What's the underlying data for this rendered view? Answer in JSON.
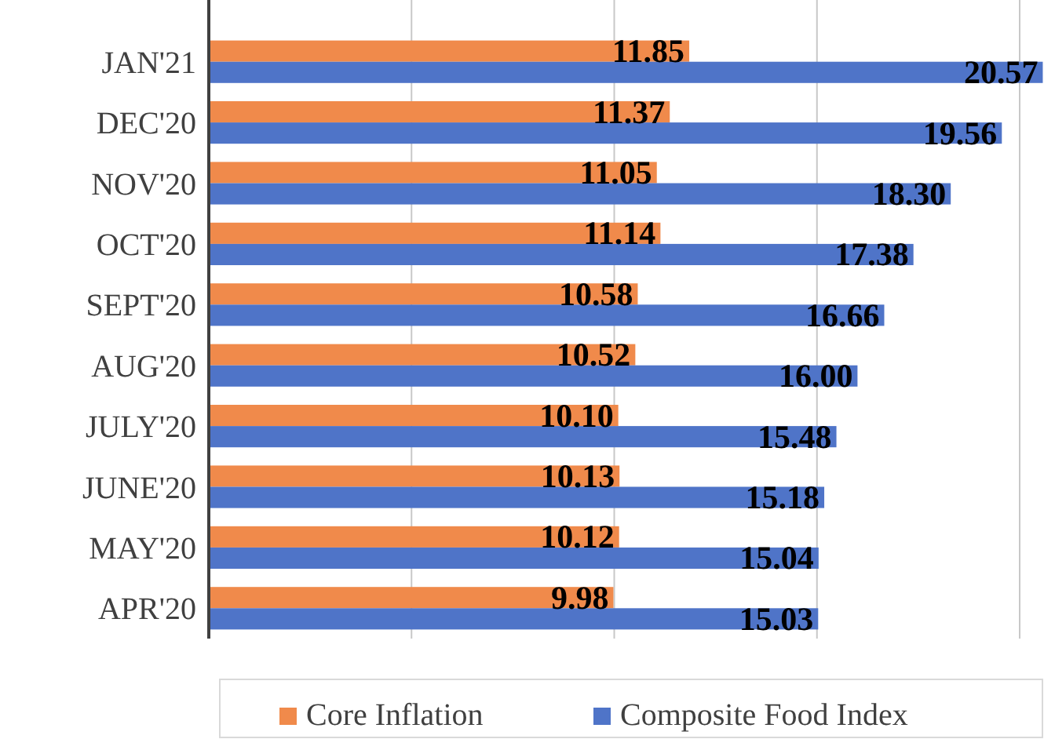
{
  "chart_data": {
    "type": "bar",
    "orientation": "horizontal",
    "categories": [
      "JAN'21",
      "DEC'20",
      "NOV'20",
      "OCT'20",
      "SEPT'20",
      "AUG'20",
      "JULY'20",
      "JUNE'20",
      "MAY'20",
      "APR'20"
    ],
    "series": [
      {
        "name": "Core Inflation",
        "color": "#f08a4b",
        "values": [
          11.85,
          11.37,
          11.05,
          11.14,
          10.58,
          10.52,
          10.1,
          10.13,
          10.12,
          9.98
        ],
        "value_labels": [
          "11.85",
          "11.37",
          "11.05",
          "11.14",
          "10.58",
          "10.52",
          "10.10",
          "10.13",
          "10.12",
          "9.98"
        ]
      },
      {
        "name": "Composite Food Index",
        "color": "#4f74c8",
        "values": [
          20.57,
          19.56,
          18.3,
          17.38,
          16.66,
          16.0,
          15.48,
          15.18,
          15.04,
          15.03
        ],
        "value_labels": [
          "20.57",
          "19.56",
          "18.30",
          "17.38",
          "16.66",
          "16.00",
          "15.48",
          "15.18",
          "15.04",
          "15.03"
        ]
      }
    ],
    "xlim": [
      0,
      20.6
    ],
    "xticks": [
      {
        "value": 0,
        "label": null
      },
      {
        "value": 5,
        "label": null
      },
      {
        "value": 10,
        "label": null
      },
      {
        "value": 15,
        "label": null
      },
      {
        "value": 20,
        "label": null
      }
    ],
    "grid": "x",
    "tick_labels": "y",
    "legend": "bottom"
  }
}
